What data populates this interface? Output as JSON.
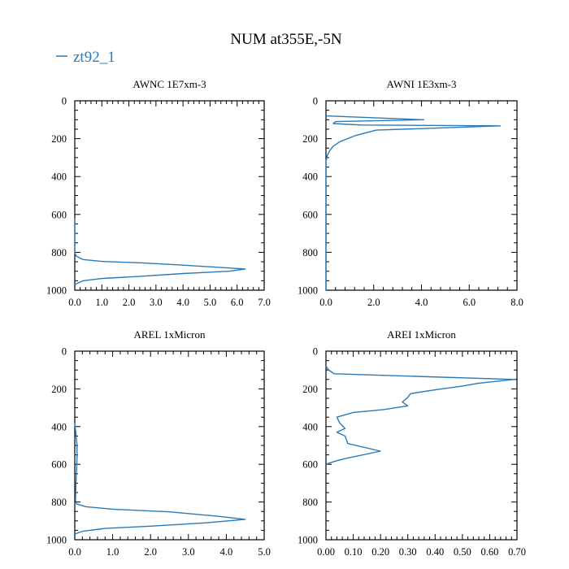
{
  "title": "NUM at355E,-5N",
  "legend": {
    "label": "zt92_1",
    "color": "#2a7ab8"
  },
  "chart_data": [
    {
      "type": "line",
      "title": "AWNC  1E7xm-3",
      "xlim": [
        0,
        7
      ],
      "ylim": [
        0,
        1000
      ],
      "y_inverted": true,
      "xticks": [
        "0.0",
        "1.0",
        "2.0",
        "3.0",
        "4.0",
        "5.0",
        "6.0",
        "7.0"
      ],
      "yticks": [
        "0",
        "200",
        "400",
        "600",
        "800",
        "1000"
      ],
      "series": [
        {
          "x": [
            0.0,
            0.0,
            0.02,
            0.05,
            0.3,
            1.0,
            2.5,
            4.0,
            6.3,
            5.7,
            4.0,
            2.5,
            1.0,
            0.3,
            0.0
          ],
          "y": [
            620,
            800,
            810,
            820,
            838,
            848,
            856,
            868,
            888,
            900,
            912,
            926,
            938,
            950,
            970
          ]
        }
      ]
    },
    {
      "type": "line",
      "title": "AWNI  1E3xm-3",
      "xlim": [
        0,
        8
      ],
      "ylim": [
        0,
        1000
      ],
      "y_inverted": true,
      "xticks": [
        "0.0",
        "2.0",
        "4.0",
        "6.0",
        "8.0"
      ],
      "yticks": [
        "0",
        "200",
        "400",
        "600",
        "800",
        "1000"
      ],
      "series": [
        {
          "x": [
            0.0,
            4.1,
            0.4,
            0.3,
            1.5,
            7.3,
            2.1,
            1.2,
            0.6,
            0.3,
            0.15,
            0.05,
            0.0,
            0.0
          ],
          "y": [
            80,
            100,
            110,
            120,
            128,
            132,
            155,
            185,
            215,
            240,
            265,
            290,
            320,
            1000
          ]
        }
      ]
    },
    {
      "type": "line",
      "title": "AREL  1xMicron",
      "xlim": [
        0,
        5
      ],
      "ylim": [
        0,
        1000
      ],
      "y_inverted": true,
      "xticks": [
        "0.0",
        "1.0",
        "2.0",
        "3.0",
        "4.0",
        "5.0"
      ],
      "yticks": [
        "0",
        "200",
        "400",
        "600",
        "800",
        "1000"
      ],
      "series": [
        {
          "x": [
            0.0,
            0.04,
            0.06,
            0.06,
            0.05,
            0.03,
            0.02,
            0.05,
            0.3,
            1.0,
            2.5,
            3.8,
            4.5,
            3.5,
            2.0,
            0.8,
            0.2,
            0.0
          ],
          "y": [
            380,
            460,
            500,
            560,
            620,
            700,
            790,
            810,
            825,
            838,
            852,
            876,
            892,
            910,
            928,
            940,
            955,
            970
          ]
        }
      ]
    },
    {
      "type": "line",
      "title": "AREI  1xMicron",
      "xlim": [
        0,
        0.7
      ],
      "ylim": [
        0,
        1000
      ],
      "y_inverted": true,
      "xticks": [
        "0.00",
        "0.10",
        "0.20",
        "0.30",
        "0.40",
        "0.50",
        "0.60",
        "0.70"
      ],
      "yticks": [
        "0",
        "200",
        "400",
        "600",
        "800",
        "1000"
      ],
      "series": [
        {
          "x": [
            0.0,
            0.01,
            0.02,
            0.03,
            0.69,
            0.56,
            0.5,
            0.4,
            0.31,
            0.3,
            0.28,
            0.3,
            0.21,
            0.1,
            0.04,
            0.05,
            0.07,
            0.04,
            0.07,
            0.08,
            0.2,
            0.07,
            0.03,
            0.0
          ],
          "y": [
            80,
            100,
            110,
            120,
            150,
            170,
            185,
            205,
            225,
            245,
            270,
            290,
            310,
            325,
            350,
            380,
            410,
            430,
            450,
            490,
            530,
            570,
            585,
            600
          ]
        }
      ]
    }
  ]
}
